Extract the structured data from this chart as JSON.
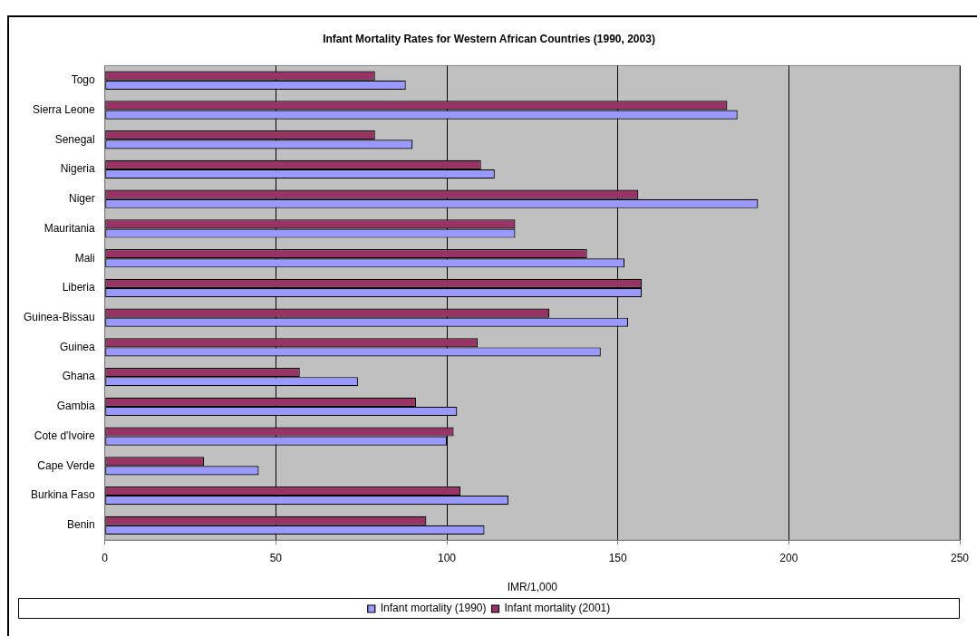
{
  "chart_data": {
    "type": "bar",
    "orientation": "horizontal",
    "title": "Infant Mortality Rates for Western African Countries (1990, 2003)",
    "xlabel": "IMR/1,000",
    "categories": [
      "Togo",
      "Sierra Leone",
      "Senegal",
      "Nigeria",
      "Niger",
      "Mauritania",
      "Mali",
      "Liberia",
      "Guinea-Bissau",
      "Guinea",
      "Ghana",
      "Gambia",
      "Cote d'Ivoire",
      "Cape Verde",
      "Burkina Faso",
      "Benin"
    ],
    "series": [
      {
        "name": "Infant mortality (1990)",
        "color": "#9999ff",
        "values": [
          88,
          185,
          90,
          114,
          191,
          120,
          152,
          157,
          153,
          145,
          74,
          103,
          100,
          45,
          118,
          111
        ]
      },
      {
        "name": "Infant mortality (2001)",
        "color": "#993366",
        "values": [
          79,
          182,
          79,
          110,
          156,
          120,
          141,
          157,
          130,
          109,
          57,
          91,
          102,
          29,
          104,
          94
        ]
      }
    ],
    "xlim": [
      0,
      250
    ],
    "xticks": [
      0,
      50,
      100,
      150,
      200,
      250
    ],
    "grid": "x",
    "legend": "bottom"
  }
}
